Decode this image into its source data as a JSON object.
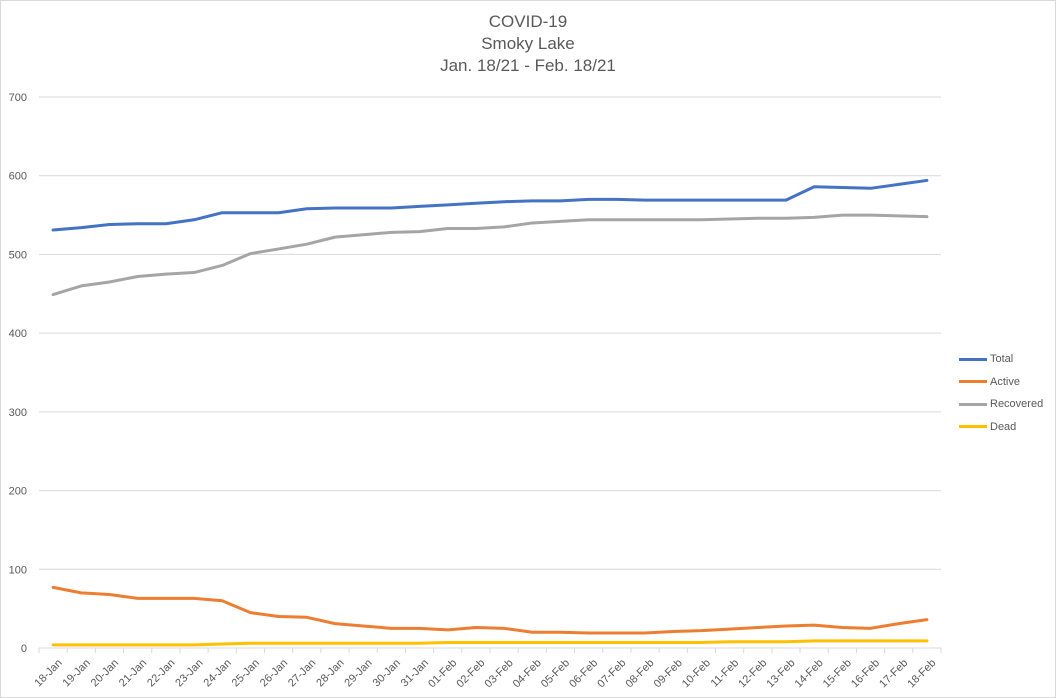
{
  "chart_data": {
    "type": "line",
    "title": [
      "COVID-19",
      "Smoky Lake",
      "Jan. 18/21 - Feb. 18/21"
    ],
    "xlabel": "",
    "ylabel": "",
    "ylim": [
      0,
      700
    ],
    "yticks": [
      0,
      100,
      200,
      300,
      400,
      500,
      600,
      700
    ],
    "grid": true,
    "legend_position": "right",
    "categories": [
      "18-Jan",
      "19-Jan",
      "20-Jan",
      "21-Jan",
      "22-Jan",
      "23-Jan",
      "24-Jan",
      "25-Jan",
      "26-Jan",
      "27-Jan",
      "28-Jan",
      "29-Jan",
      "30-Jan",
      "31-Jan",
      "01-Feb",
      "02-Feb",
      "03-Feb",
      "04-Feb",
      "05-Feb",
      "06-Feb",
      "07-Feb",
      "08-Feb",
      "09-Feb",
      "10-Feb",
      "11-Feb",
      "12-Feb",
      "13-Feb",
      "14-Feb",
      "15-Feb",
      "16-Feb",
      "17-Feb",
      "18-Feb"
    ],
    "series": [
      {
        "name": "Total",
        "color": "#4472c4",
        "values": [
          531,
          534,
          538,
          539,
          539,
          544,
          553,
          553,
          553,
          558,
          559,
          559,
          559,
          561,
          563,
          565,
          567,
          568,
          568,
          570,
          570,
          569,
          569,
          569,
          569,
          569,
          569,
          586,
          585,
          584,
          589,
          594
        ]
      },
      {
        "name": "Active",
        "color": "#ed7d31",
        "values": [
          77,
          70,
          68,
          63,
          63,
          63,
          60,
          45,
          40,
          39,
          31,
          28,
          25,
          25,
          23,
          26,
          25,
          20,
          20,
          19,
          19,
          19,
          21,
          22,
          24,
          26,
          28,
          29,
          26,
          25,
          31,
          36
        ]
      },
      {
        "name": "Recovered",
        "color": "#a5a5a5",
        "values": [
          449,
          460,
          465,
          472,
          475,
          477,
          486,
          501,
          507,
          513,
          522,
          525,
          528,
          529,
          533,
          533,
          535,
          540,
          542,
          544,
          544,
          544,
          544,
          544,
          545,
          546,
          546,
          547,
          550,
          550,
          549,
          548
        ]
      },
      {
        "name": "Dead",
        "color": "#ffc000",
        "values": [
          4,
          4,
          4,
          4,
          4,
          4,
          5,
          6,
          6,
          6,
          6,
          6,
          6,
          6,
          7,
          7,
          7,
          7,
          7,
          7,
          7,
          7,
          7,
          7,
          8,
          8,
          8,
          9,
          9,
          9,
          9,
          9
        ]
      }
    ]
  }
}
